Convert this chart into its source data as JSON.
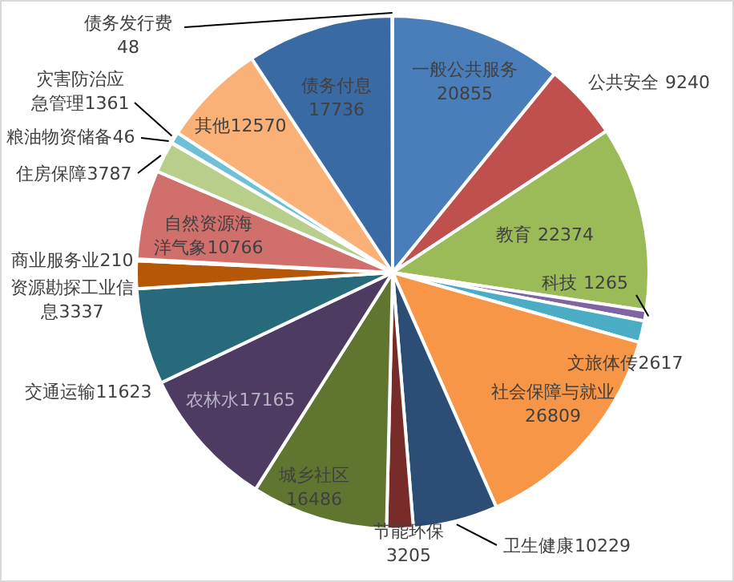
{
  "chart_data": {
    "type": "pie",
    "categories": [
      "一般公共服务",
      "公共安全",
      "教育",
      "科技",
      "文旅体传",
      "社会保障与就业",
      "卫生健康",
      "节能环保",
      "城乡社区",
      "农林水",
      "交通运输",
      "资源勘探工业信息",
      "商业服务业",
      "自然资源海洋气象",
      "住房保障",
      "粮油物资储备",
      "灾害防治应急管理",
      "其他",
      "债务付息",
      "债务发行费"
    ],
    "values": [
      20855,
      9240,
      22374,
      1265,
      2617,
      26809,
      10229,
      3205,
      16486,
      17165,
      11623,
      3337,
      210,
      10766,
      3787,
      46,
      1361,
      12570,
      17736,
      48
    ],
    "colors": [
      "#4a7ebb",
      "#c0504d",
      "#9bbb59",
      "#8064a2",
      "#4bacc6",
      "#f79646",
      "#2c4d75",
      "#772c2a",
      "#5f7530",
      "#4d3b62",
      "#276a7c",
      "#b65708",
      "#729aca",
      "#d06f6c",
      "#b7cf8b",
      "#a5a5a5",
      "#6fc0d6",
      "#f9b177",
      "#3a6aa4",
      "#4f81bd"
    ],
    "data_labels": true
  }
}
